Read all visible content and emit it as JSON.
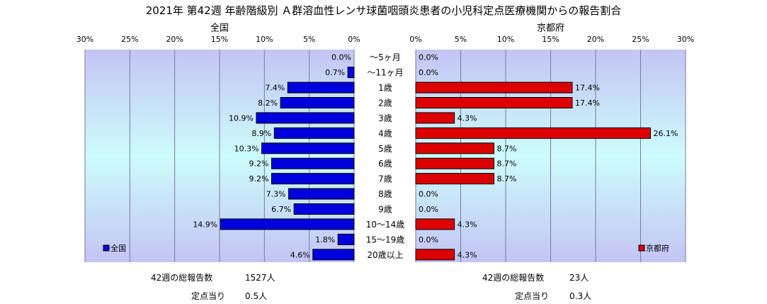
{
  "title": "2021年 第42週 年齢階級別 Ａ群溶血性レンサ球菌咽頭炎患者の小児科定点医療機関からの報告割合",
  "colors": {
    "national_bar": "#0000dd",
    "kyoto_bar": "#dd0000",
    "plot_bg_edge": "#c4c4f4",
    "plot_bg_center": "#ccfcfc",
    "gridline": "#7a7a9a"
  },
  "chart_data": [
    {
      "type": "bar",
      "orientation": "horizontal",
      "direction": "leftward",
      "title": "全国",
      "legend": "全国",
      "legend_position": "bottom-left",
      "xlim": [
        0,
        30
      ],
      "x_ticks": [
        "30%",
        "25%",
        "20%",
        "15%",
        "10%",
        "5%",
        "0%"
      ],
      "categories": [
        "～5ヶ月",
        "～11ヶ月",
        "1歳",
        "2歳",
        "3歳",
        "4歳",
        "5歳",
        "6歳",
        "7歳",
        "8歳",
        "9歳",
        "10～14歳",
        "15～19歳",
        "20歳以上"
      ],
      "values": [
        0.0,
        0.7,
        7.4,
        8.2,
        10.9,
        8.9,
        10.3,
        9.2,
        9.2,
        7.3,
        6.7,
        14.9,
        1.8,
        4.6
      ],
      "labels": [
        "0.0%",
        "0.7%",
        "7.4%",
        "8.2%",
        "10.9%",
        "8.9%",
        "10.3%",
        "9.2%",
        "9.2%",
        "7.3%",
        "6.7%",
        "14.9%",
        "1.8%",
        "4.6%"
      ],
      "grid": true
    },
    {
      "type": "bar",
      "orientation": "horizontal",
      "direction": "rightward",
      "title": "京都府",
      "legend": "京都府",
      "legend_position": "bottom-right",
      "xlim": [
        0,
        30
      ],
      "x_ticks": [
        "0%",
        "5%",
        "10%",
        "15%",
        "20%",
        "25%",
        "30%"
      ],
      "categories": [
        "～5ヶ月",
        "～11ヶ月",
        "1歳",
        "2歳",
        "3歳",
        "4歳",
        "5歳",
        "6歳",
        "7歳",
        "8歳",
        "9歳",
        "10～14歳",
        "15～19歳",
        "20歳以上"
      ],
      "values": [
        0.0,
        0.0,
        17.4,
        17.4,
        4.3,
        26.1,
        8.7,
        8.7,
        8.7,
        0.0,
        0.0,
        4.3,
        0.0,
        4.3
      ],
      "labels": [
        "0.0%",
        "0.0%",
        "17.4%",
        "17.4%",
        "4.3%",
        "26.1%",
        "8.7%",
        "8.7%",
        "8.7%",
        "0.0%",
        "0.0%",
        "4.3%",
        "0.0%",
        "4.3%"
      ],
      "grid": true
    }
  ],
  "summary": {
    "national": {
      "total_label": "42週の総報告数",
      "total_value": "1527人",
      "per_site_label": "定点当り",
      "per_site_value": "0.5人"
    },
    "kyoto": {
      "total_label": "42週の総報告数",
      "total_value": "23人",
      "per_site_label": "定点当り",
      "per_site_value": "0.3人"
    }
  }
}
